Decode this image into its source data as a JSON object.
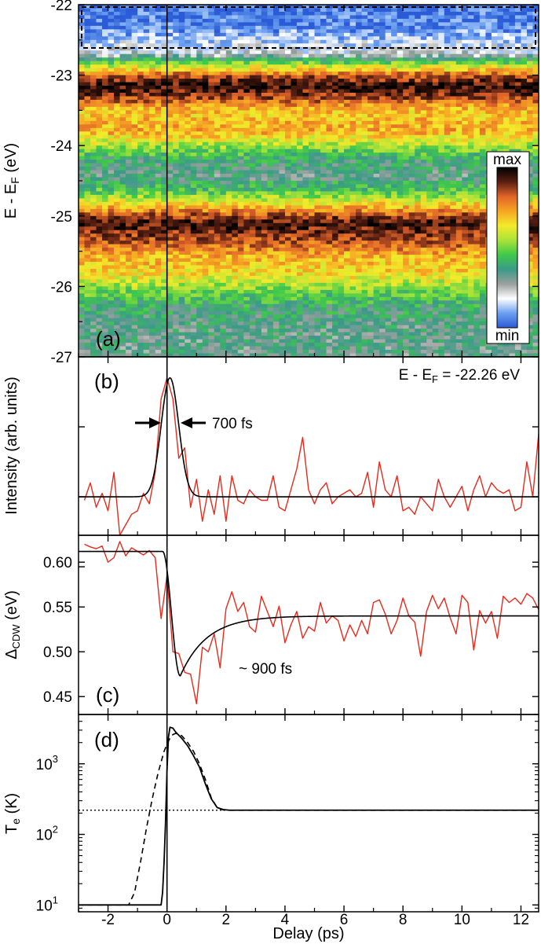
{
  "figure": {
    "x_axis_label": "Delay (ps)",
    "x_ticks": [
      "-2",
      "0",
      "2",
      "4",
      "6",
      "8",
      "10",
      "12"
    ],
    "x_range": [
      -3.0,
      12.6
    ]
  },
  "panels": {
    "a": {
      "label": "(a)"
    },
    "b": {
      "label": "(b)",
      "energy_note": "E - E_F = -22.26 eV",
      "width_note": "700 fs"
    },
    "c": {
      "label": "(c)",
      "tau_note": "~ 900 fs"
    },
    "d": {
      "label": "(d)"
    }
  },
  "colorbar": {
    "max_label": "max",
    "min_label": "min"
  },
  "colors": {
    "data_red": "#e8291c",
    "fit_black": "#000000",
    "cmap": [
      "#2b5bd6",
      "#6a9ff0",
      "#ffffff",
      "#9aa09e",
      "#3a9a88",
      "#40c94a",
      "#a8e23a",
      "#f4ea2a",
      "#f6a623",
      "#e2642a",
      "#5a2012",
      "#000000"
    ]
  },
  "chart_data": [
    {
      "panel": "a",
      "type": "heatmap",
      "title": "",
      "xlabel": "Delay (ps)",
      "ylabel": "E - E_F (eV)",
      "xlim": [
        -3.0,
        12.6
      ],
      "ylim": [
        -27.0,
        -22.0
      ],
      "yticks": [
        -22,
        -23,
        -24,
        -25,
        -26,
        -27
      ],
      "ytick_labels": [
        "-22",
        "-23",
        "-24",
        "-25",
        "-26",
        "-27"
      ],
      "ylabel_main": "E - E",
      "ylabel_sub": "F",
      "ylabel_unit": "(eV)",
      "intensity_profile": {
        "energy": [
          -22.0,
          -22.3,
          -22.55,
          -22.7,
          -22.85,
          -23.0,
          -23.15,
          -23.3,
          -23.5,
          -23.8,
          -24.0,
          -24.2,
          -24.45,
          -24.7,
          -24.95,
          -25.1,
          -25.3,
          -25.6,
          -25.8,
          -26.1,
          -26.3,
          -26.6,
          -27.0
        ],
        "level": [
          0.03,
          0.05,
          0.16,
          0.22,
          0.55,
          0.82,
          0.96,
          0.88,
          0.68,
          0.72,
          0.55,
          0.38,
          0.33,
          0.5,
          0.8,
          0.95,
          0.86,
          0.7,
          0.66,
          0.48,
          0.38,
          0.34,
          0.33
        ]
      },
      "boxed_region": {
        "energy_range": [
          -22.62,
          -22.0
        ],
        "style": "dashed"
      }
    },
    {
      "panel": "b",
      "type": "line",
      "title": "",
      "xlabel": "Delay (ps)",
      "ylabel": "Intensity (arb. units)",
      "xlim": [
        -3.0,
        12.6
      ],
      "ylim": [
        -0.55,
        2.0
      ],
      "series": [
        {
          "name": "data",
          "x": [
            -2.8,
            -2.6,
            -2.4,
            -2.2,
            -2.0,
            -1.8,
            -1.6,
            -1.4,
            -1.2,
            -1.0,
            -0.8,
            -0.6,
            -0.4,
            -0.2,
            0.0,
            0.2,
            0.4,
            0.6,
            0.8,
            1.0,
            1.2,
            1.4,
            1.6,
            1.8,
            2.0,
            2.2,
            2.4,
            2.6,
            2.8,
            3.0,
            3.2,
            3.4,
            3.6,
            3.8,
            4.0,
            4.2,
            4.4,
            4.6,
            4.8,
            5.0,
            5.2,
            5.4,
            5.6,
            5.8,
            6.0,
            6.2,
            6.4,
            6.6,
            6.8,
            7.0,
            7.2,
            7.4,
            7.6,
            7.8,
            8.0,
            8.2,
            8.4,
            8.6,
            8.8,
            9.0,
            9.2,
            9.4,
            9.6,
            9.8,
            10.0,
            10.2,
            10.4,
            10.6,
            10.8,
            11.0,
            11.2,
            11.4,
            11.6,
            11.8,
            12.0,
            12.2,
            12.4,
            12.6
          ],
          "y": [
            -0.05,
            0.2,
            -0.15,
            0.05,
            -0.2,
            0.35,
            -0.55,
            -0.4,
            -0.25,
            -0.2,
            0.05,
            -0.1,
            0.35,
            1.4,
            1.7,
            1.4,
            0.55,
            0.7,
            -0.15,
            0.25,
            -0.35,
            0.1,
            -0.25,
            0.3,
            -0.35,
            0.3,
            -0.05,
            -0.1,
            0.1,
            0.0,
            -0.05,
            -0.05,
            0.3,
            -0.15,
            -0.2,
            0.1,
            0.4,
            0.85,
            0.1,
            -0.1,
            0.1,
            0.2,
            -0.1,
            0.0,
            0.05,
            0.1,
            0.0,
            0.05,
            0.35,
            -0.15,
            0.5,
            0.1,
            0.0,
            0.3,
            -0.2,
            -0.15,
            -0.25,
            0.0,
            -0.1,
            -0.2,
            0.25,
            0.0,
            -0.15,
            0.0,
            0.15,
            -0.2,
            0.1,
            0.3,
            0.0,
            0.2,
            0.1,
            0.05,
            0.1,
            -0.2,
            -0.15,
            0.5,
            0.0,
            0.9
          ]
        }
      ],
      "fit": {
        "model": "gaussian",
        "center": 0.1,
        "fwhm_ps": 0.7,
        "amplitude": 1.7,
        "baseline": 0.0
      }
    },
    {
      "panel": "c",
      "type": "line",
      "title": "",
      "xlabel": "Delay (ps)",
      "ylabel": "Δ_CDW (eV)",
      "ylabel_main": "Δ",
      "ylabel_sub": "CDW",
      "ylabel_unit": "(eV)",
      "xlim": [
        -3.0,
        12.6
      ],
      "ylim": [
        0.43,
        0.63
      ],
      "yticks": [
        0.45,
        0.5,
        0.55,
        0.6
      ],
      "ytick_labels": [
        "0.45",
        "0.50",
        "0.55",
        "0.60"
      ],
      "series": [
        {
          "name": "data",
          "x": [
            -2.8,
            -2.6,
            -2.4,
            -2.2,
            -2.0,
            -1.8,
            -1.6,
            -1.4,
            -1.2,
            -1.0,
            -0.8,
            -0.6,
            -0.4,
            -0.2,
            0.0,
            0.2,
            0.4,
            0.6,
            0.8,
            1.0,
            1.2,
            1.4,
            1.6,
            1.8,
            2.0,
            2.2,
            2.4,
            2.6,
            2.8,
            3.0,
            3.2,
            3.4,
            3.6,
            3.8,
            4.0,
            4.2,
            4.4,
            4.6,
            4.8,
            5.0,
            5.2,
            5.4,
            5.6,
            5.8,
            6.0,
            6.2,
            6.4,
            6.6,
            6.8,
            7.0,
            7.2,
            7.4,
            7.6,
            7.8,
            8.0,
            8.2,
            8.4,
            8.6,
            8.8,
            9.0,
            9.2,
            9.4,
            9.6,
            9.8,
            10.0,
            10.2,
            10.4,
            10.6,
            10.8,
            11.0,
            11.2,
            11.4,
            11.6,
            11.8,
            12.0,
            12.2,
            12.4,
            12.6
          ],
          "y": [
            0.62,
            0.617,
            0.615,
            0.618,
            0.6,
            0.605,
            0.623,
            0.607,
            0.616,
            0.612,
            0.608,
            0.613,
            0.605,
            0.537,
            0.585,
            0.5,
            0.498,
            0.477,
            0.475,
            0.442,
            0.505,
            0.5,
            0.52,
            0.482,
            0.548,
            0.567,
            0.545,
            0.555,
            0.528,
            0.522,
            0.562,
            0.545,
            0.528,
            0.551,
            0.51,
            0.53,
            0.545,
            0.515,
            0.528,
            0.523,
            0.555,
            0.532,
            0.54,
            0.535,
            0.512,
            0.53,
            0.517,
            0.535,
            0.52,
            0.555,
            0.558,
            0.542,
            0.52,
            0.535,
            0.56,
            0.54,
            0.533,
            0.495,
            0.545,
            0.563,
            0.548,
            0.56,
            0.538,
            0.52,
            0.563,
            0.555,
            0.502,
            0.546,
            0.532,
            0.545,
            0.515,
            0.562,
            0.555,
            0.56,
            0.553,
            0.565,
            0.56,
            0.547
          ]
        }
      ],
      "fit": {
        "model": "step-dip-recovery",
        "initial": 0.612,
        "minimum": 0.473,
        "minimum_at": 0.45,
        "final": 0.54,
        "tau_ps": 0.9
      }
    },
    {
      "panel": "d",
      "type": "line",
      "title": "",
      "xlabel": "Delay (ps)",
      "ylabel": "T_e (K)",
      "ylabel_main": "T",
      "ylabel_sub": "e",
      "ylabel_unit": "(K)",
      "yscale": "log",
      "ylim": [
        8,
        5000
      ],
      "yticks": [
        10,
        100,
        1000
      ],
      "ytick_base": "10",
      "ytick_exponents": [
        "1",
        "2",
        "3"
      ],
      "series": [
        {
          "name": "solid",
          "x": [
            -3.0,
            -0.2,
            -0.15,
            -0.1,
            -0.05,
            0.0,
            0.05,
            0.1,
            0.2,
            0.3,
            0.5,
            0.7,
            0.9,
            1.1,
            1.3,
            1.5,
            1.7,
            1.9,
            2.1,
            3.0,
            12.6
          ],
          "y": [
            10,
            10,
            15,
            40,
            150,
            800,
            2400,
            3300,
            3200,
            2800,
            2300,
            1800,
            1300,
            900,
            520,
            320,
            240,
            225,
            220,
            220,
            220
          ]
        },
        {
          "name": "dashed",
          "x": [
            -3.0,
            -1.3,
            -1.1,
            -0.9,
            -0.7,
            -0.5,
            -0.3,
            -0.1,
            0.0,
            0.1,
            0.2,
            0.3,
            0.5,
            0.7,
            0.9,
            1.1,
            1.3,
            1.5,
            1.7,
            1.9,
            2.1,
            3.0,
            12.6
          ],
          "y": [
            10,
            10,
            15,
            40,
            120,
            320,
            750,
            1500,
            1900,
            2300,
            2600,
            2700,
            2500,
            2000,
            1500,
            1000,
            600,
            330,
            240,
            222,
            220,
            220,
            220
          ]
        },
        {
          "name": "dotted",
          "x": [
            -3.0,
            12.6
          ],
          "y": [
            220,
            220
          ]
        }
      ]
    }
  ]
}
